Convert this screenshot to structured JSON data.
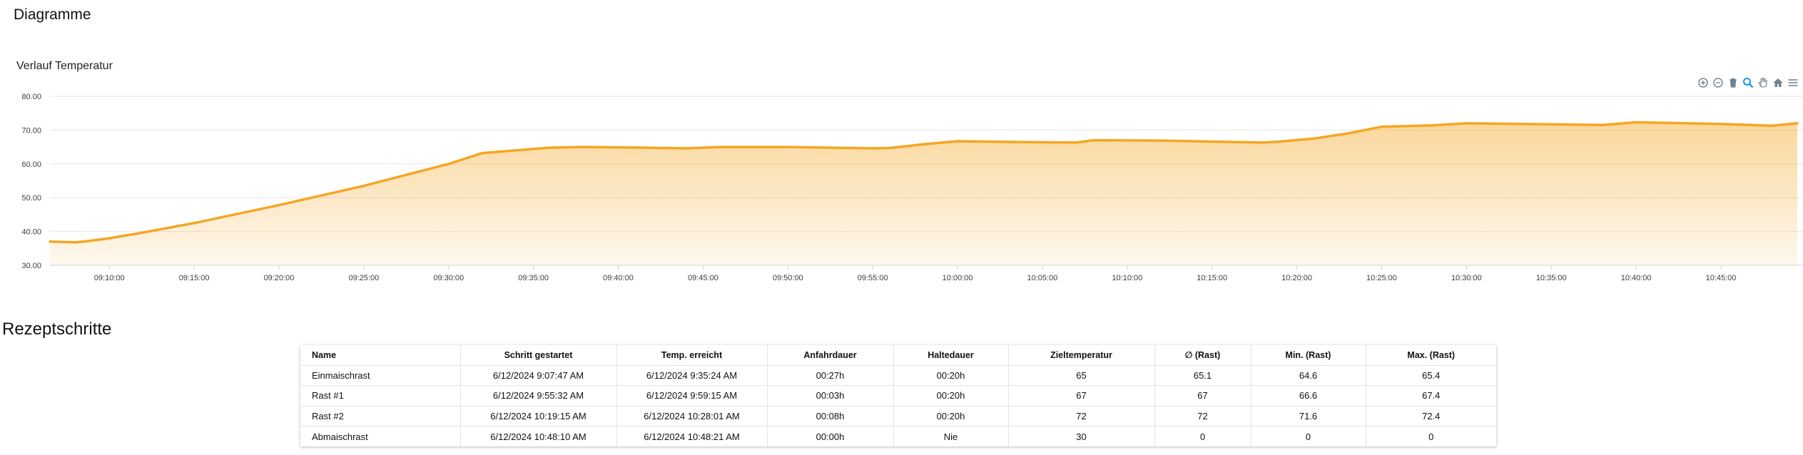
{
  "page": {
    "title": "Diagramme"
  },
  "chart": {
    "title": "Verlauf Temperatur",
    "toolbar": [
      {
        "name": "zoom-in-icon",
        "active": false
      },
      {
        "name": "zoom-out-icon",
        "active": false
      },
      {
        "name": "trash-icon",
        "active": false
      },
      {
        "name": "zoom-selection-icon",
        "active": true
      },
      {
        "name": "pan-hand-icon",
        "active": false
      },
      {
        "name": "home-reset-icon",
        "active": false
      },
      {
        "name": "menu-icon",
        "active": false
      }
    ],
    "colors": {
      "line": "#f5a623",
      "grid": "#e6e6e6"
    }
  },
  "chart_data": {
    "type": "area",
    "title": "Verlauf Temperatur",
    "xlabel": "",
    "ylabel": "",
    "ylim": [
      30,
      80
    ],
    "yticks": [
      "80.00",
      "70.00",
      "60.00",
      "50.00",
      "40.00",
      "30.00"
    ],
    "xlim": [
      "09:06:30",
      "10:49:30"
    ],
    "xticks": [
      "09:10:00",
      "09:15:00",
      "09:20:00",
      "09:25:00",
      "09:30:00",
      "09:35:00",
      "09:40:00",
      "09:45:00",
      "09:50:00",
      "09:55:00",
      "10:00:00",
      "10:05:00",
      "10:10:00",
      "10:15:00",
      "10:20:00",
      "10:25:00",
      "10:30:00",
      "10:35:00",
      "10:40:00",
      "10:45:00"
    ],
    "grid": true,
    "series": [
      {
        "x": [
          "09:06:30",
          "09:08:00",
          "09:08:30",
          "09:10:00",
          "09:12:00",
          "09:15:00",
          "09:20:00",
          "09:25:00",
          "09:30:00",
          "09:32:00",
          "09:34:00",
          "09:36:00",
          "09:38:00",
          "09:40:00",
          "09:44:00",
          "09:46:00",
          "09:50:00",
          "09:55:00",
          "09:56:00",
          "09:58:00",
          "10:00:00",
          "10:05:00",
          "10:07:00",
          "10:08:00",
          "10:12:00",
          "10:18:00",
          "10:19:00",
          "10:21:00",
          "10:23:00",
          "10:25:00",
          "10:28:00",
          "10:30:00",
          "10:35:00",
          "10:38:00",
          "10:40:00",
          "10:42:00",
          "10:45:00",
          "10:48:00",
          "10:49:30"
        ],
        "y": [
          37.0,
          36.8,
          37.0,
          38.0,
          39.7,
          42.5,
          47.8,
          53.5,
          60.0,
          63.2,
          64.0,
          64.8,
          65.0,
          64.9,
          64.6,
          65.0,
          65.0,
          64.6,
          64.7,
          65.8,
          66.7,
          66.4,
          66.3,
          67.0,
          66.9,
          66.3,
          66.6,
          67.5,
          69.0,
          71.0,
          71.4,
          72.0,
          71.7,
          71.5,
          72.3,
          72.1,
          71.8,
          71.3,
          72.0
        ]
      }
    ]
  },
  "recipe": {
    "title": "Rezeptschritte",
    "columns": [
      "Name",
      "Schritt gestartet",
      "Temp. erreicht",
      "Anfahrdauer",
      "Haltedauer",
      "Zieltemperatur",
      "∅ (Rast)",
      "Min. (Rast)",
      "Max. (Rast)"
    ],
    "rows": [
      [
        "Einmaischrast",
        "6/12/2024 9:07:47 AM",
        "6/12/2024 9:35:24 AM",
        "00:27h",
        "00:20h",
        "65",
        "65.1",
        "64.6",
        "65.4"
      ],
      [
        "Rast #1",
        "6/12/2024 9:55:32 AM",
        "6/12/2024 9:59:15 AM",
        "00:03h",
        "00:20h",
        "67",
        "67",
        "66.6",
        "67.4"
      ],
      [
        "Rast #2",
        "6/12/2024 10:19:15 AM",
        "6/12/2024 10:28:01 AM",
        "00:08h",
        "00:20h",
        "72",
        "72",
        "71.6",
        "72.4"
      ],
      [
        "Abmaischrast",
        "6/12/2024 10:48:10 AM",
        "6/12/2024 10:48:21 AM",
        "00:00h",
        "Nie",
        "30",
        "0",
        "0",
        "0"
      ]
    ]
  }
}
